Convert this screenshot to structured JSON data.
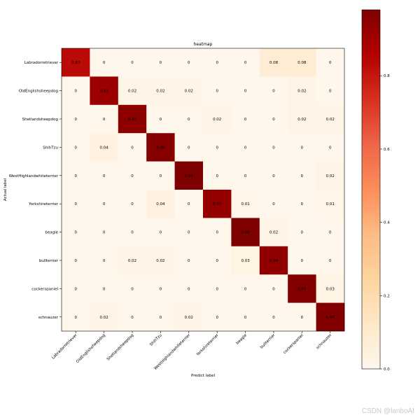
{
  "chart_data": {
    "type": "heatmap",
    "title": "heatmap",
    "xlabel": "Predict label",
    "ylabel": "Actual label",
    "categories": [
      "Labradorretriever",
      "OldEnglishsheepdog",
      "Shetlandsheepdog",
      "ShihTzu",
      "WestHighlandwhiteterrier",
      "Yorkshireterrier",
      "beagle",
      "bullterrier",
      "cockerspaniel",
      "schnauzer"
    ],
    "x_tick_labels": [
      "Labradorretriever",
      "OldEnglishsheepdog",
      "Shetlandsheepdog",
      "ShihTzu",
      "WestHighlandwhiteterrier",
      "Yorkshireterrier",
      "beagle",
      "bullterrier",
      "cockerspaniel",
      "schnauzer"
    ],
    "y_tick_labels": [
      "Labradorretriever",
      "OldEnglishsheepdog",
      "Shetlandsheepdog",
      "ShihTzu",
      "WestHighlandwhiteterrier",
      "Yorkshireterrier",
      "beagle",
      "bullterrier",
      "cockerspaniel",
      "schnauzer"
    ],
    "values": [
      [
        0.83,
        0.0,
        0.0,
        0.0,
        0.0,
        0.0,
        0.0,
        0.08,
        0.08,
        0.0
      ],
      [
        0.0,
        0.91,
        0.02,
        0.02,
        0.02,
        0.0,
        0.0,
        0.0,
        0.02,
        0.0
      ],
      [
        0.0,
        0.0,
        0.95,
        0.0,
        0.0,
        0.02,
        0.0,
        0.0,
        0.02,
        0.02
      ],
      [
        0.0,
        0.04,
        0.0,
        0.96,
        0.0,
        0.0,
        0.0,
        0.0,
        0.0,
        0.0
      ],
      [
        0.0,
        0.0,
        0.0,
        0.0,
        0.98,
        0.0,
        0.0,
        0.0,
        0.0,
        0.02
      ],
      [
        0.0,
        0.0,
        0.0,
        0.04,
        0.0,
        0.93,
        0.01,
        0.0,
        0.0,
        0.01
      ],
      [
        0.0,
        0.0,
        0.0,
        0.0,
        0.0,
        0.0,
        0.98,
        0.02,
        0.0,
        0.0
      ],
      [
        0.0,
        0.0,
        0.02,
        0.02,
        0.0,
        0.0,
        0.03,
        0.94,
        0.0,
        0.0
      ],
      [
        0.0,
        0.0,
        0.0,
        0.0,
        0.0,
        0.0,
        0.0,
        0.0,
        0.97,
        0.03
      ],
      [
        0.0,
        0.02,
        0.0,
        0.0,
        0.02,
        0.0,
        0.0,
        0.0,
        0.0,
        0.97
      ]
    ],
    "colormap": "OrRd",
    "colorbar_ticks": [
      "0.0",
      "0.2",
      "0.4",
      "0.6",
      "0.8"
    ],
    "colorbar_range": [
      0,
      0.98
    ],
    "grid": false
  },
  "watermark": "CSDN @lanboAI"
}
